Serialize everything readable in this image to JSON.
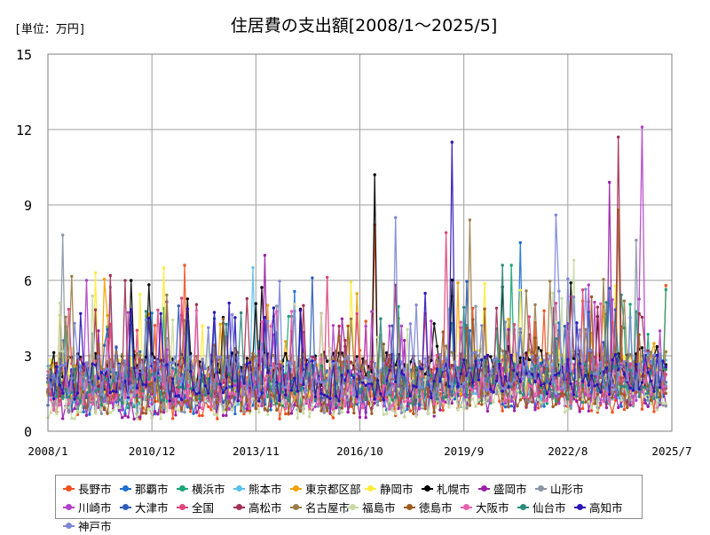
{
  "unit_label": "[単位：万円]",
  "chart_data": {
    "type": "line",
    "title": "住居費の支出額[2008/1～2025/5]",
    "xlabel": "",
    "ylabel": "",
    "ylim": [
      0,
      15
    ],
    "yticks": [
      0,
      3,
      6,
      9,
      12,
      15
    ],
    "xlim": [
      "2008/1",
      "2025/7"
    ],
    "xticks": [
      "2008/1",
      "2010/12",
      "2013/11",
      "2016/10",
      "2019/9",
      "2022/8",
      "2025/7"
    ],
    "grid": true,
    "legend_position": "bottom",
    "series": [
      {
        "name": "長野市",
        "color": "#f4511e",
        "peaks": [
          {
            "x": "2017/3",
            "y": 8.2
          },
          {
            "x": "2011/11",
            "y": 6.6
          },
          {
            "x": "2025/5",
            "y": 5.8
          }
        ]
      },
      {
        "name": "那覇市",
        "color": "#1f6fd0",
        "peaks": [
          {
            "x": "2021/4",
            "y": 7.5
          }
        ]
      },
      {
        "name": "横浜市",
        "color": "#1aa57a",
        "peaks": [
          {
            "x": "2021/1",
            "y": 6.6
          }
        ]
      },
      {
        "name": "熊本市",
        "color": "#5bc0eb",
        "peaks": [
          {
            "x": "2013/10",
            "y": 6.5
          }
        ]
      },
      {
        "name": "東京都区部",
        "color": "#f0a202",
        "peaks": [
          {
            "x": "2019/7",
            "y": 5.9
          }
        ]
      },
      {
        "name": "静岡市",
        "color": "#ffeb3b",
        "peaks": [
          {
            "x": "2009/5",
            "y": 6.3
          },
          {
            "x": "2011/4",
            "y": 6.5
          }
        ]
      },
      {
        "name": "札幌市",
        "color": "#000000",
        "peaks": [
          {
            "x": "2017/3",
            "y": 10.2
          },
          {
            "x": "2022/9",
            "y": 5.9
          }
        ]
      },
      {
        "name": "盛岡市",
        "color": "#9c1fa8",
        "peaks": [
          {
            "x": "2014/2",
            "y": 7.0
          },
          {
            "x": "2023/10",
            "y": 9.9
          }
        ]
      },
      {
        "name": "山形市",
        "color": "#8a95a5",
        "peaks": [
          {
            "x": "2008/6",
            "y": 7.8
          },
          {
            "x": "2024/7",
            "y": 7.6
          }
        ]
      },
      {
        "name": "川崎市",
        "color": "#b23fc9",
        "peaks": [
          {
            "x": "2024/9",
            "y": 12.1
          },
          {
            "x": "2009/2",
            "y": 6.0
          }
        ]
      },
      {
        "name": "大津市",
        "color": "#2d5db8",
        "peaks": [
          {
            "x": "2015/6",
            "y": 6.1
          }
        ]
      },
      {
        "name": "全国",
        "color": "#e0457b",
        "peaks": [
          {
            "x": "2019/3",
            "y": 7.9
          }
        ]
      },
      {
        "name": "高松市",
        "color": "#a33055",
        "peaks": [
          {
            "x": "2024/1",
            "y": 11.7
          }
        ]
      },
      {
        "name": "名古屋市",
        "color": "#9a7d4a",
        "peaks": [
          {
            "x": "2019/11",
            "y": 8.4
          }
        ]
      },
      {
        "name": "福島市",
        "color": "#c9dba5",
        "peaks": [
          {
            "x": "2022/10",
            "y": 6.8
          }
        ]
      },
      {
        "name": "徳島市",
        "color": "#9e5a22",
        "peaks": [
          {
            "x": "2024/1",
            "y": 8.8
          }
        ]
      },
      {
        "name": "大阪市",
        "color": "#e85fae",
        "peaks": [
          {
            "x": "2012/3",
            "y": 4.8
          }
        ]
      },
      {
        "name": "仙台市",
        "color": "#2b8a7a",
        "peaks": [
          {
            "x": "2020/10",
            "y": 6.6
          }
        ]
      },
      {
        "name": "高知市",
        "color": "#2a16b8",
        "peaks": [
          {
            "x": "2019/5",
            "y": 11.5
          }
        ]
      },
      {
        "name": "神戸市",
        "color": "#7d86d6",
        "peaks": [
          {
            "x": "2017/10",
            "y": 8.5
          },
          {
            "x": "2022/4",
            "y": 8.6
          }
        ]
      }
    ]
  }
}
